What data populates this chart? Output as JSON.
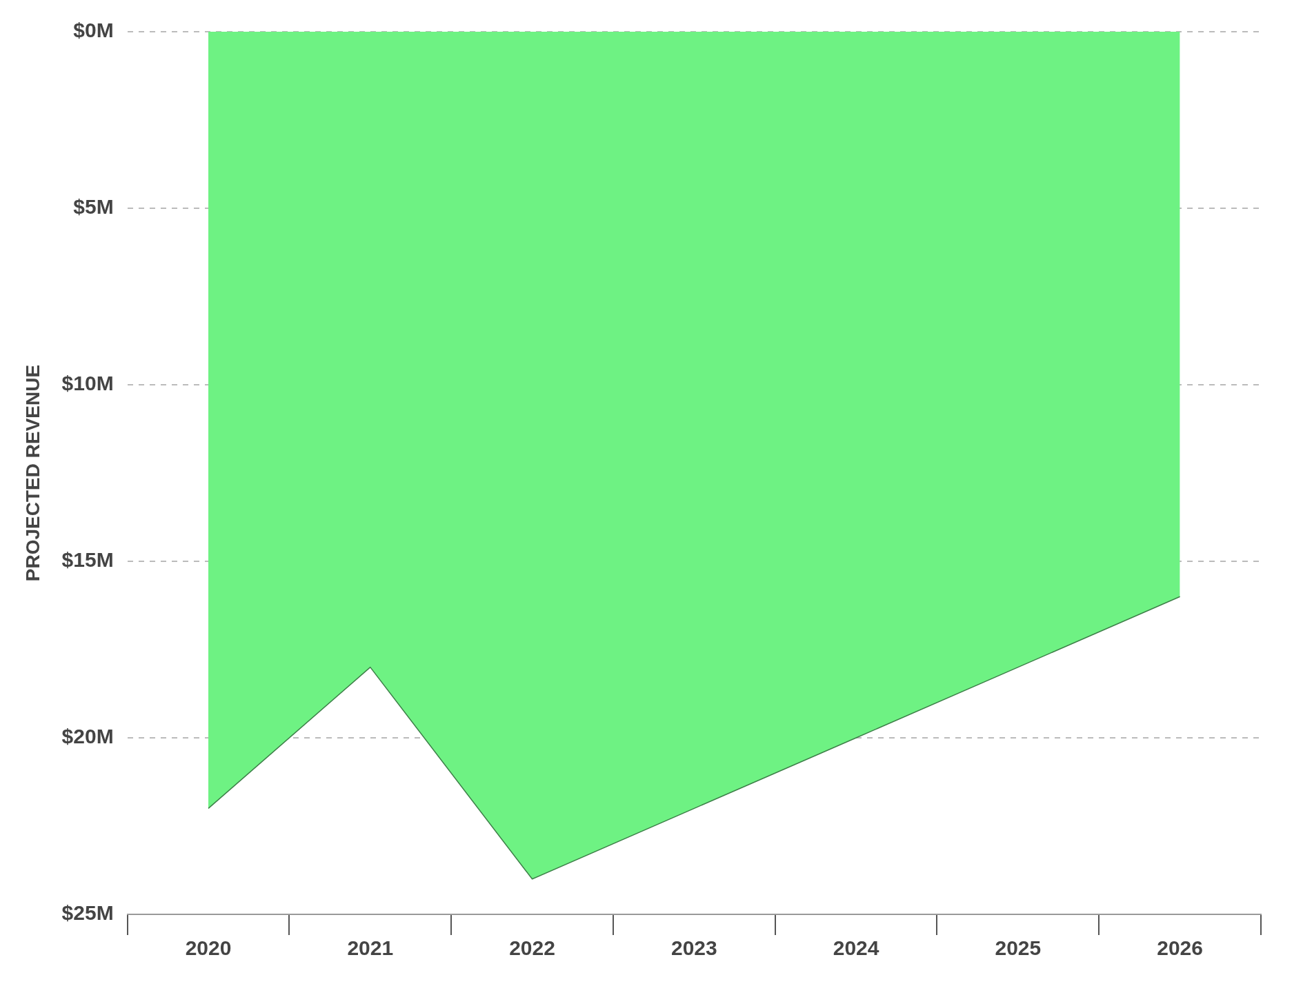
{
  "chart_data": {
    "type": "area",
    "ylabel": "PROJECTED REVENUE",
    "categories": [
      "2020",
      "2021",
      "2022",
      "2023",
      "2024",
      "2025",
      "2026"
    ],
    "series": [
      {
        "color": "#6ef283",
        "values": [
          22,
          18,
          24,
          22,
          20,
          18,
          16
        ]
      }
    ],
    "ylim": [
      25,
      0
    ],
    "yticks": [
      {
        "value": 0,
        "label": "$0M"
      },
      {
        "value": 5,
        "label": "$5M"
      },
      {
        "value": 10,
        "label": "$10M"
      },
      {
        "value": 15,
        "label": "$15M"
      },
      {
        "value": 20,
        "label": "$20M"
      },
      {
        "value": 25,
        "label": "$25M"
      }
    ],
    "grid": "y",
    "legend": false
  }
}
